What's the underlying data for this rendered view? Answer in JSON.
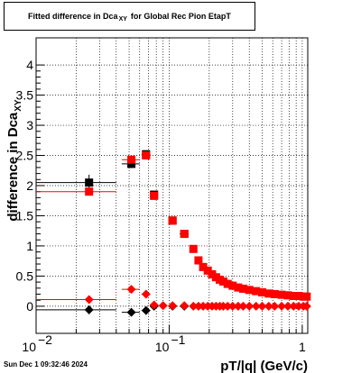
{
  "chart_data": {
    "type": "scatter",
    "title_main": "Fitted difference in Dca",
    "title_sub": "XY",
    "title_tail": "for Global Rec Pion EtapT",
    "xlabel": "pT/|q| (GeV/c)",
    "ylabel_main": "difference in Dca",
    "ylabel_sub": "XY",
    "x_scale": "log",
    "xlim": [
      0.01,
      1.1
    ],
    "ylim": [
      -0.45,
      4.45
    ],
    "grid": true,
    "y_ticks": [
      {
        "v": 0,
        "label": "0"
      },
      {
        "v": 0.5,
        "label": "0.5"
      },
      {
        "v": 1,
        "label": "1"
      },
      {
        "v": 1.5,
        "label": "1.5"
      },
      {
        "v": 2,
        "label": "2"
      },
      {
        "v": 2.5,
        "label": "2.5"
      },
      {
        "v": 3,
        "label": "3"
      },
      {
        "v": 3.5,
        "label": "3.5"
      },
      {
        "v": 4,
        "label": "4"
      }
    ],
    "x_ticks": [
      {
        "v": 0.01,
        "label": "10",
        "exp": "−2"
      },
      {
        "v": 0.1,
        "label": "10",
        "exp": "−1"
      },
      {
        "v": 1,
        "label": "1",
        "exp": ""
      }
    ],
    "series": [
      {
        "marker": "square",
        "color": "#000000",
        "points": [
          {
            "x": 0.025,
            "y": 2.05,
            "xerr": 0.015,
            "yerr": 0.13
          },
          {
            "x": 0.052,
            "y": 2.36,
            "xerr": 0.008,
            "yerr": 0.07
          },
          {
            "x": 0.067,
            "y": 2.52,
            "xerr": 0.005,
            "yerr": 0.05
          },
          {
            "x": 0.077,
            "y": 1.85,
            "xerr": 0.004,
            "yerr": 0.05
          },
          {
            "x": 0.106,
            "y": 1.42,
            "xerr": 0.005,
            "yerr": 0.03
          },
          {
            "x": 0.13,
            "y": 1.2,
            "xerr": 0.01,
            "yerr": 0.03
          }
        ]
      },
      {
        "marker": "square",
        "color": "#ff0000",
        "points": [
          {
            "x": 0.025,
            "y": 1.9,
            "xerr": 0.015,
            "yerr": 0.06
          },
          {
            "x": 0.052,
            "y": 2.43,
            "xerr": 0.008,
            "yerr": 0.05
          },
          {
            "x": 0.067,
            "y": 2.5,
            "xerr": 0.005,
            "yerr": 0.05
          },
          {
            "x": 0.077,
            "y": 1.83,
            "xerr": 0.004,
            "yerr": 0.05
          },
          {
            "x": 0.106,
            "y": 1.42,
            "xerr": 0.005,
            "yerr": 0.03
          },
          {
            "x": 0.13,
            "y": 1.2,
            "xerr": 0.005,
            "yerr": 0.03
          },
          {
            "x": 0.152,
            "y": 0.95,
            "xerr": 0.004,
            "yerr": 0.03
          },
          {
            "x": 0.166,
            "y": 0.76,
            "xerr": 0.004,
            "yerr": 0.02
          },
          {
            "x": 0.18,
            "y": 0.65,
            "xerr": 0.004,
            "yerr": 0.02
          },
          {
            "x": 0.195,
            "y": 0.59,
            "xerr": 0.004,
            "yerr": 0.02
          },
          {
            "x": 0.21,
            "y": 0.53,
            "xerr": 0.004,
            "yerr": 0.02
          },
          {
            "x": 0.225,
            "y": 0.48,
            "xerr": 0.004,
            "yerr": 0.02
          },
          {
            "x": 0.24,
            "y": 0.44,
            "xerr": 0.004,
            "yerr": 0.02
          },
          {
            "x": 0.255,
            "y": 0.41,
            "xerr": 0.004,
            "yerr": 0.02
          },
          {
            "x": 0.275,
            "y": 0.37,
            "xerr": 0.004,
            "yerr": 0.02
          },
          {
            "x": 0.3,
            "y": 0.34,
            "xerr": 0.004,
            "yerr": 0.02
          },
          {
            "x": 0.33,
            "y": 0.31,
            "xerr": 0.004,
            "yerr": 0.02
          },
          {
            "x": 0.36,
            "y": 0.29,
            "xerr": 0.004,
            "yerr": 0.02
          },
          {
            "x": 0.4,
            "y": 0.27,
            "xerr": 0.004,
            "yerr": 0.02
          },
          {
            "x": 0.45,
            "y": 0.25,
            "xerr": 0.004,
            "yerr": 0.02
          },
          {
            "x": 0.5,
            "y": 0.23,
            "xerr": 0.004,
            "yerr": 0.02
          },
          {
            "x": 0.56,
            "y": 0.21,
            "xerr": 0.004,
            "yerr": 0.02
          },
          {
            "x": 0.62,
            "y": 0.2,
            "xerr": 0.004,
            "yerr": 0.02
          },
          {
            "x": 0.7,
            "y": 0.19,
            "xerr": 0.004,
            "yerr": 0.02
          },
          {
            "x": 0.78,
            "y": 0.18,
            "xerr": 0.004,
            "yerr": 0.02
          },
          {
            "x": 0.86,
            "y": 0.17,
            "xerr": 0.004,
            "yerr": 0.02
          },
          {
            "x": 0.94,
            "y": 0.17,
            "xerr": 0.004,
            "yerr": 0.02
          },
          {
            "x": 1.02,
            "y": 0.16,
            "xerr": 0.004,
            "yerr": 0.02
          },
          {
            "x": 1.08,
            "y": 0.16,
            "xerr": 0.004,
            "yerr": 0.02
          }
        ]
      },
      {
        "marker": "diamond",
        "color": "#000000",
        "points": [
          {
            "x": 0.025,
            "y": -0.06,
            "xerr": 0.015,
            "yerr": 0.07
          },
          {
            "x": 0.052,
            "y": -0.1,
            "xerr": 0.008,
            "yerr": 0.03
          },
          {
            "x": 0.067,
            "y": -0.07,
            "xerr": 0.005,
            "yerr": 0.02
          },
          {
            "x": 0.077,
            "y": 0.0,
            "xerr": 0.004,
            "yerr": 0.02
          },
          {
            "x": 0.106,
            "y": 0.0,
            "xerr": 0.005,
            "yerr": 0.02
          },
          {
            "x": 0.13,
            "y": 0.0,
            "xerr": 0.01,
            "yerr": 0.02
          }
        ]
      },
      {
        "marker": "diamond",
        "color": "#ff0000",
        "points": [
          {
            "x": 0.025,
            "y": 0.11,
            "xerr": 0.015,
            "yerr": 0.03
          },
          {
            "x": 0.052,
            "y": 0.28,
            "xerr": 0.008,
            "yerr": 0.03
          },
          {
            "x": 0.067,
            "y": 0.2,
            "xerr": 0.005,
            "yerr": 0.02
          },
          {
            "x": 0.077,
            "y": 0.02,
            "xerr": 0.004,
            "yerr": 0.02
          },
          {
            "x": 0.09,
            "y": 0.01,
            "xerr": 0.004,
            "yerr": 0.01
          },
          {
            "x": 0.106,
            "y": 0.01,
            "xerr": 0.005,
            "yerr": 0.01
          },
          {
            "x": 0.13,
            "y": 0.01,
            "xerr": 0.005,
            "yerr": 0.01
          },
          {
            "x": 0.152,
            "y": 0.0,
            "xerr": 0.004,
            "yerr": 0.01
          },
          {
            "x": 0.166,
            "y": 0.0,
            "xerr": 0.004,
            "yerr": 0.01
          },
          {
            "x": 0.18,
            "y": 0.0,
            "xerr": 0.004,
            "yerr": 0.01
          },
          {
            "x": 0.195,
            "y": 0.0,
            "xerr": 0.004,
            "yerr": 0.01
          },
          {
            "x": 0.21,
            "y": 0.0,
            "xerr": 0.004,
            "yerr": 0.01
          },
          {
            "x": 0.225,
            "y": 0.0,
            "xerr": 0.004,
            "yerr": 0.01
          },
          {
            "x": 0.24,
            "y": 0.0,
            "xerr": 0.004,
            "yerr": 0.01
          },
          {
            "x": 0.255,
            "y": 0.0,
            "xerr": 0.004,
            "yerr": 0.01
          },
          {
            "x": 0.275,
            "y": 0.0,
            "xerr": 0.004,
            "yerr": 0.01
          },
          {
            "x": 0.3,
            "y": 0.0,
            "xerr": 0.004,
            "yerr": 0.01
          },
          {
            "x": 0.33,
            "y": 0.0,
            "xerr": 0.004,
            "yerr": 0.01
          },
          {
            "x": 0.36,
            "y": 0.0,
            "xerr": 0.004,
            "yerr": 0.01
          },
          {
            "x": 0.4,
            "y": 0.0,
            "xerr": 0.004,
            "yerr": 0.01
          },
          {
            "x": 0.45,
            "y": 0.0,
            "xerr": 0.004,
            "yerr": 0.01
          },
          {
            "x": 0.5,
            "y": 0.0,
            "xerr": 0.004,
            "yerr": 0.01
          },
          {
            "x": 0.56,
            "y": 0.0,
            "xerr": 0.004,
            "yerr": 0.01
          },
          {
            "x": 0.62,
            "y": 0.0,
            "xerr": 0.004,
            "yerr": 0.01
          },
          {
            "x": 0.7,
            "y": 0.0,
            "xerr": 0.004,
            "yerr": 0.01
          },
          {
            "x": 0.78,
            "y": 0.0,
            "xerr": 0.004,
            "yerr": 0.01
          },
          {
            "x": 0.86,
            "y": 0.0,
            "xerr": 0.004,
            "yerr": 0.01
          },
          {
            "x": 0.94,
            "y": 0.0,
            "xerr": 0.004,
            "yerr": 0.01
          },
          {
            "x": 1.02,
            "y": 0.0,
            "xerr": 0.004,
            "yerr": 0.01
          },
          {
            "x": 1.08,
            "y": 0.0,
            "xerr": 0.004,
            "yerr": 0.01
          }
        ]
      }
    ]
  },
  "timestamp": "Sun Dec  1 09:32:46 2024"
}
